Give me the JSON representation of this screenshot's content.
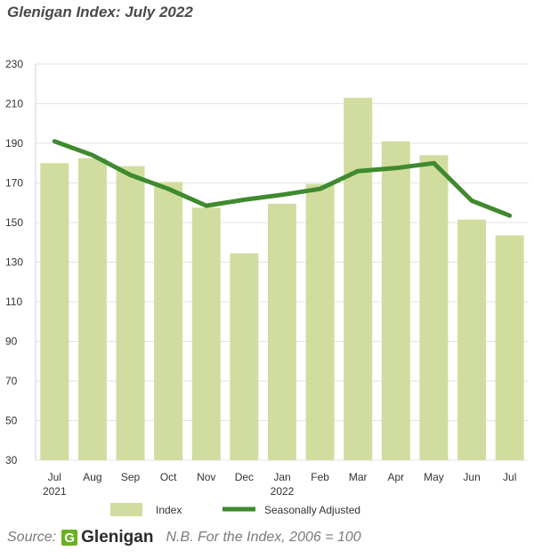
{
  "title": "Glenigan Index: July 2022",
  "chart_data": {
    "type": "bar",
    "categories": [
      "Jul",
      "Aug",
      "Sep",
      "Oct",
      "Nov",
      "Dec",
      "Jan",
      "Feb",
      "Mar",
      "Apr",
      "May",
      "Jun",
      "Jul"
    ],
    "year_labels": [
      "2021",
      "",
      "",
      "",
      "",
      "",
      "2022",
      "",
      "",
      "",
      "",
      "",
      ""
    ],
    "series": [
      {
        "name": "Index",
        "type": "bar",
        "color": "#d1dd9e",
        "values": [
          180,
          182.5,
          178.5,
          170.5,
          157.5,
          134.5,
          159.5,
          169.5,
          213,
          191,
          184,
          151.5,
          143.5
        ]
      },
      {
        "name": "Seasonally Adjusted",
        "type": "line",
        "color": "#3f8a2f",
        "values": [
          191,
          184,
          174,
          167,
          158.5,
          161.5,
          164,
          167,
          176,
          177.5,
          180,
          161,
          153.5
        ]
      }
    ],
    "ylim": [
      30,
      230
    ],
    "yticks": [
      30,
      50,
      70,
      90,
      110,
      130,
      150,
      170,
      190,
      210,
      230
    ],
    "grid": true,
    "legend": "bottom"
  },
  "source": {
    "label": "Source:",
    "logo_mark": "G",
    "logo_text": "Glenigan",
    "note": "N.B. For the Index, 2006 = 100"
  }
}
